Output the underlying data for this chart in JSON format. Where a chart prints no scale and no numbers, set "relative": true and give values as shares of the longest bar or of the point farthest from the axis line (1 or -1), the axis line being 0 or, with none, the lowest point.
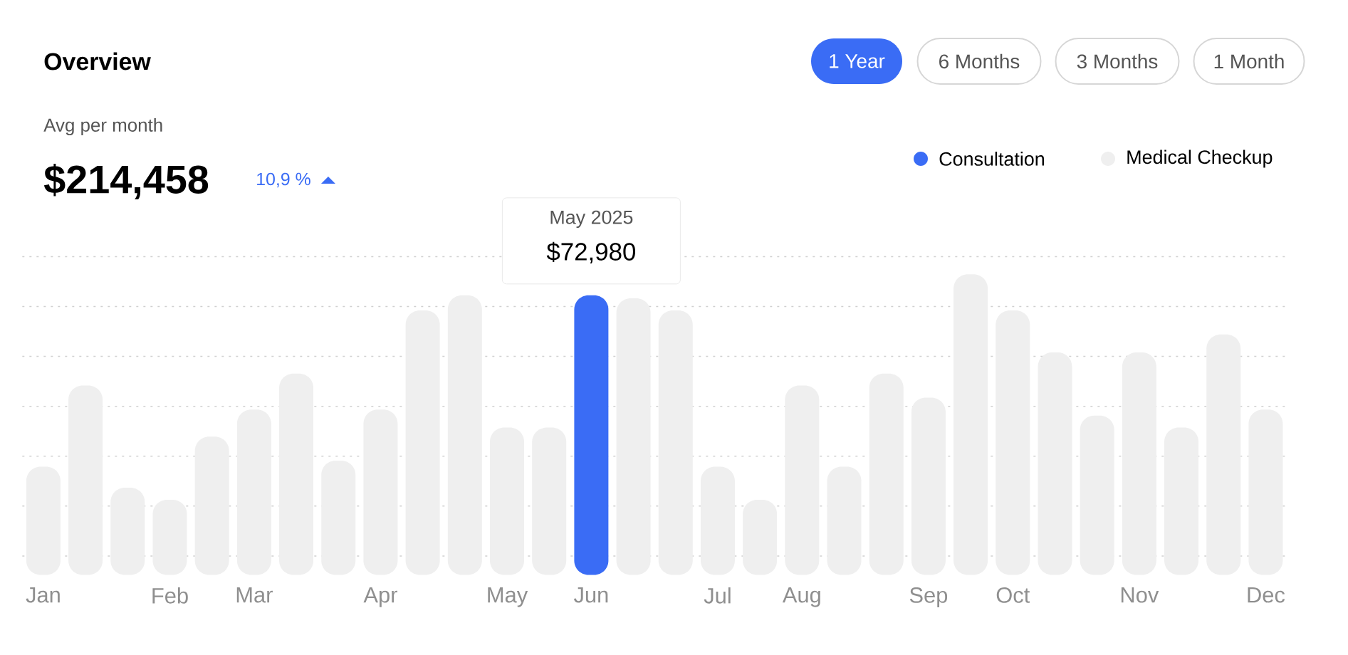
{
  "chart_data": {
    "type": "bar",
    "title": "Overview",
    "relative": true,
    "categories": [
      "Jan",
      null,
      null,
      "Feb",
      null,
      "Mar",
      null,
      null,
      "Apr",
      null,
      null,
      "May",
      null,
      "Jun",
      null,
      null,
      "Jul",
      null,
      "Aug",
      null,
      null,
      "Sep",
      null,
      "Oct",
      null,
      null,
      "Nov",
      null,
      null,
      "Dec"
    ],
    "series": [
      {
        "name": "Consultation",
        "color": "#3a6cf5",
        "values": [
          null,
          null,
          null,
          null,
          null,
          null,
          null,
          null,
          null,
          null,
          null,
          null,
          null,
          0.93,
          null,
          null,
          null,
          null,
          null,
          null,
          null,
          null,
          null,
          null,
          null,
          null,
          null,
          null,
          null,
          null
        ]
      },
      {
        "name": "Medical Checkup",
        "color": "#efefef",
        "values": [
          0.36,
          0.63,
          0.29,
          0.25,
          0.46,
          0.55,
          0.67,
          0.38,
          0.55,
          0.88,
          0.93,
          0.49,
          0.49,
          null,
          0.92,
          0.88,
          0.36,
          0.25,
          0.63,
          0.36,
          0.67,
          0.59,
          1,
          0.88,
          0.74,
          0.53,
          0.74,
          0.49,
          0.8,
          0.55
        ]
      }
    ],
    "grid": "y",
    "legend": "top right",
    "annotations": [
      "Avg per month",
      "$214,458",
      "10,9 %",
      "1 Year",
      "6 Months",
      "3 Months",
      "1 Month",
      "May 2025",
      "$72,980"
    ]
  }
}
